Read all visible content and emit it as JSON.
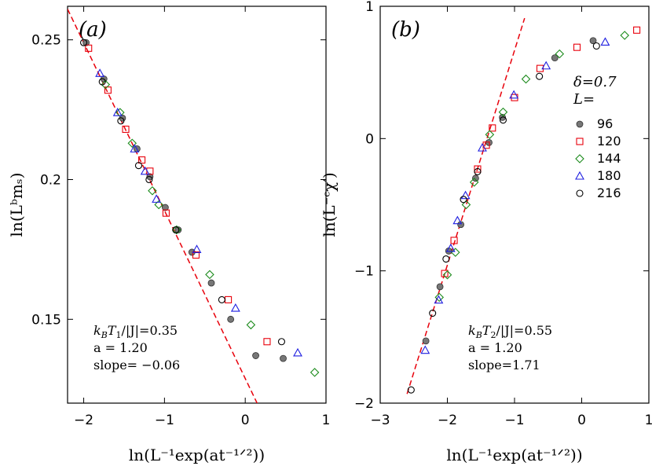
{
  "colors": {
    "L96": "#777777",
    "L120": "#e8000b",
    "L144": "#1a8a1a",
    "L180": "#1f1fe0",
    "L216": "#000000",
    "fit": "#e8000b"
  },
  "chart_data": [
    {
      "type": "scatter",
      "panel_label": "(a)",
      "xlabel": "ln(L⁻¹exp(at⁻¹ᐟ²))",
      "ylabel": "ln(Lᵇmₛ)",
      "xlim": [
        -2.2,
        1.0
      ],
      "ylim": [
        0.12,
        0.262
      ],
      "xticks": [
        -2,
        -1,
        0,
        1
      ],
      "xtick_labels": [
        "−2",
        "−1",
        "0",
        "1"
      ],
      "yticks": [
        0.15,
        0.2,
        0.25
      ],
      "ytick_labels": [
        "0.15",
        "0.2",
        "0.25"
      ],
      "annotations": [
        "k_BT_1/|J|=0.35",
        "a = 1.20",
        "slope= −0.06"
      ],
      "fit_line": {
        "x": [
          -2.2,
          0.18
        ],
        "y": [
          0.261,
          0.118
        ]
      },
      "series": [
        {
          "name": "96",
          "marker": "filled-circle",
          "points": [
            [
              -1.97,
              0.249
            ],
            [
              -1.75,
              0.236
            ],
            [
              -1.52,
              0.222
            ],
            [
              -1.34,
              0.211
            ],
            [
              -1.18,
              0.201
            ],
            [
              -0.99,
              0.19
            ],
            [
              -0.83,
              0.182
            ],
            [
              -0.66,
              0.174
            ],
            [
              -0.42,
              0.163
            ],
            [
              -0.18,
              0.15
            ],
            [
              0.13,
              0.137
            ],
            [
              0.47,
              0.136
            ]
          ]
        },
        {
          "name": "120",
          "series_marker": "open-square",
          "marker": "open-square",
          "points": [
            [
              -1.94,
              0.247
            ],
            [
              -1.7,
              0.232
            ],
            [
              -1.48,
              0.218
            ],
            [
              -1.28,
              0.207
            ],
            [
              -1.18,
              0.203
            ],
            [
              -0.98,
              0.188
            ],
            [
              -0.61,
              0.173
            ],
            [
              -0.21,
              0.157
            ],
            [
              0.27,
              0.142
            ]
          ]
        },
        {
          "name": "144",
          "marker": "open-diamond",
          "points": [
            [
              -1.73,
              0.234
            ],
            [
              -1.55,
              0.224
            ],
            [
              -1.4,
              0.213
            ],
            [
              -1.15,
              0.196
            ],
            [
              -1.07,
              0.191
            ],
            [
              -0.85,
              0.182
            ],
            [
              -0.44,
              0.166
            ],
            [
              0.07,
              0.148
            ],
            [
              0.86,
              0.131
            ]
          ]
        },
        {
          "name": "180",
          "marker": "open-triangle",
          "points": [
            [
              -1.8,
              0.238
            ],
            [
              -1.58,
              0.224
            ],
            [
              -1.37,
              0.211
            ],
            [
              -1.24,
              0.203
            ],
            [
              -1.1,
              0.193
            ],
            [
              -0.6,
              0.175
            ],
            [
              -0.12,
              0.154
            ],
            [
              0.65,
              0.138
            ]
          ]
        },
        {
          "name": "216",
          "marker": "open-circle",
          "points": [
            [
              -2.0,
              0.249
            ],
            [
              -1.77,
              0.235
            ],
            [
              -1.54,
              0.221
            ],
            [
              -1.32,
              0.205
            ],
            [
              -1.19,
              0.2
            ],
            [
              -0.86,
              0.182
            ],
            [
              -0.29,
              0.157
            ],
            [
              0.45,
              0.142
            ]
          ]
        }
      ]
    },
    {
      "type": "scatter",
      "panel_label": "(b)",
      "xlabel": "ln(L⁻¹exp(at⁻¹ᐟ²))",
      "ylabel": "ln(L⁻ᶜχ′)",
      "xlim": [
        -3.0,
        1.0
      ],
      "ylim": [
        -2.0,
        1.0
      ],
      "xticks": [
        -3,
        -2,
        -1,
        0,
        1
      ],
      "xtick_labels": [
        "−3",
        "−2",
        "−1",
        "0",
        "1"
      ],
      "yticks": [
        -2,
        -1,
        0,
        1
      ],
      "ytick_labels": [
        "−2",
        "−1",
        "0",
        "1"
      ],
      "annotations": [
        "k_BT_2/|J|=0.55",
        "a = 1.20",
        "slope=1.71"
      ],
      "legend": {
        "title_lines": [
          "δ=0.7",
          "L="
        ],
        "entries": [
          "96",
          "120",
          "144",
          "180",
          "216"
        ]
      },
      "fit_line": {
        "x": [
          -2.6,
          -0.85
        ],
        "y": [
          -1.93,
          0.91
        ]
      },
      "series": [
        {
          "name": "96",
          "marker": "filled-circle",
          "points": [
            [
              -2.32,
              -1.53
            ],
            [
              -2.11,
              -1.12
            ],
            [
              -1.98,
              -0.85
            ],
            [
              -1.8,
              -0.65
            ],
            [
              -1.58,
              -0.3
            ],
            [
              -1.38,
              -0.03
            ],
            [
              -1.18,
              0.16
            ],
            [
              -0.4,
              0.61
            ],
            [
              0.17,
              0.74
            ]
          ]
        },
        {
          "name": "120",
          "marker": "open-square",
          "points": [
            [
              -2.04,
              -1.02
            ],
            [
              -1.9,
              -0.77
            ],
            [
              -1.55,
              -0.23
            ],
            [
              -1.42,
              -0.05
            ],
            [
              -1.33,
              0.08
            ],
            [
              -1.0,
              0.31
            ],
            [
              -0.62,
              0.53
            ],
            [
              -0.07,
              0.69
            ],
            [
              0.82,
              0.82
            ]
          ]
        },
        {
          "name": "144",
          "marker": "open-diamond",
          "points": [
            [
              -2.12,
              -1.2
            ],
            [
              -2.0,
              -1.03
            ],
            [
              -1.88,
              -0.86
            ],
            [
              -1.72,
              -0.5
            ],
            [
              -1.6,
              -0.33
            ],
            [
              -1.37,
              0.03
            ],
            [
              -1.17,
              0.2
            ],
            [
              -0.83,
              0.45
            ],
            [
              -0.33,
              0.64
            ],
            [
              0.64,
              0.78
            ]
          ]
        },
        {
          "name": "180",
          "marker": "open-triangle",
          "points": [
            [
              -2.33,
              -1.6
            ],
            [
              -2.13,
              -1.22
            ],
            [
              -1.95,
              -0.83
            ],
            [
              -1.85,
              -0.62
            ],
            [
              -1.73,
              -0.43
            ],
            [
              -1.48,
              -0.07
            ],
            [
              -1.01,
              0.33
            ],
            [
              -0.53,
              0.55
            ],
            [
              0.35,
              0.73
            ]
          ]
        },
        {
          "name": "216",
          "marker": "open-circle",
          "points": [
            [
              -2.54,
              -1.9
            ],
            [
              -2.22,
              -1.32
            ],
            [
              -2.02,
              -0.91
            ],
            [
              -1.76,
              -0.46
            ],
            [
              -1.55,
              -0.25
            ],
            [
              -1.17,
              0.14
            ],
            [
              -0.63,
              0.47
            ],
            [
              0.22,
              0.7
            ]
          ]
        }
      ]
    }
  ]
}
